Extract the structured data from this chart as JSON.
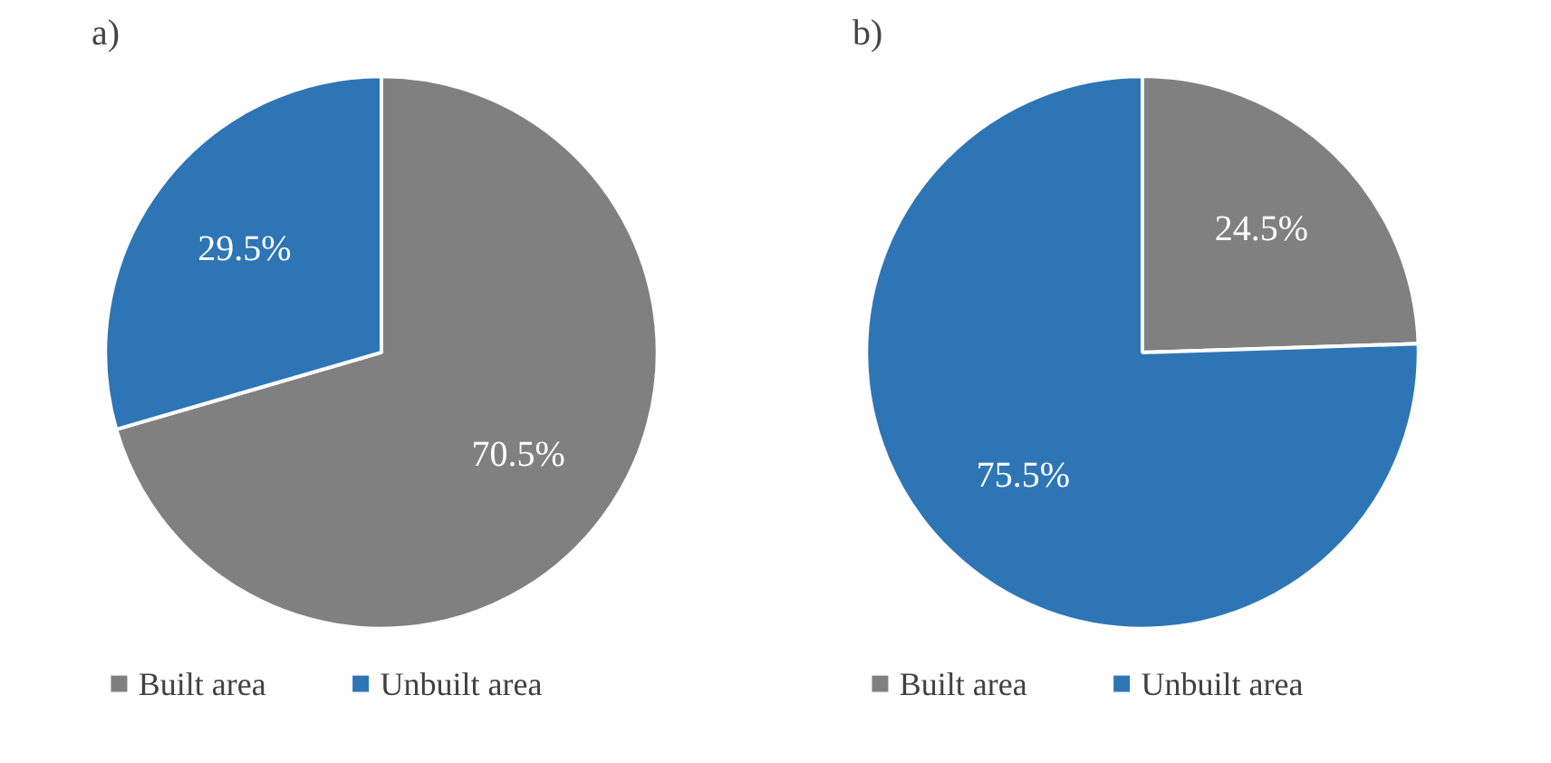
{
  "chart_data": [
    {
      "type": "pie",
      "title": "a)",
      "categories": [
        "Built area",
        "Unbuilt area"
      ],
      "values": [
        70.5,
        29.5
      ],
      "colors": [
        "#808080",
        "#2e75b6"
      ],
      "value_labels": [
        "70.5%",
        "29.5%"
      ],
      "legend": "bottom"
    },
    {
      "type": "pie",
      "title": "b)",
      "categories": [
        "Built area",
        "Unbuilt area"
      ],
      "values": [
        24.5,
        75.5
      ],
      "colors": [
        "#808080",
        "#2e75b6"
      ],
      "value_labels": [
        "24.5%",
        "75.5%"
      ],
      "legend": "bottom"
    }
  ]
}
